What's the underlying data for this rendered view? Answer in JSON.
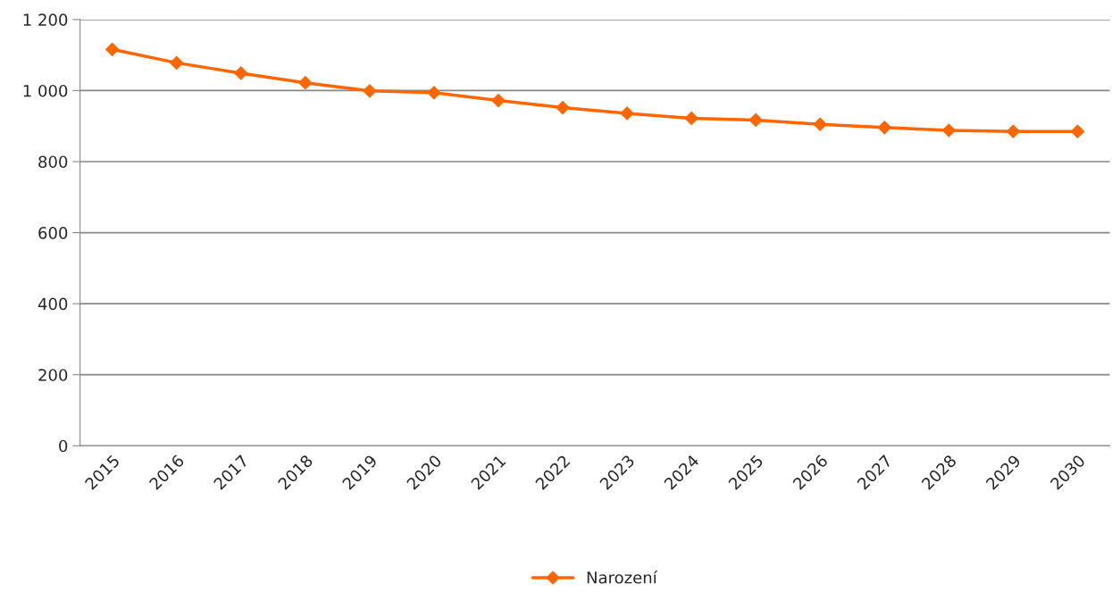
{
  "chart_data": {
    "type": "line",
    "categories": [
      "2015",
      "2016",
      "2017",
      "2018",
      "2019",
      "2020",
      "2021",
      "2022",
      "2023",
      "2024",
      "2025",
      "2026",
      "2027",
      "2028",
      "2029",
      "2030"
    ],
    "series": [
      {
        "name": "Narození",
        "color": "#ff6600",
        "values": [
          1116,
          1078,
          1049,
          1022,
          999,
          994,
          972,
          952,
          936,
          922,
          917,
          905,
          896,
          888,
          885,
          885
        ]
      }
    ],
    "ylim": [
      0,
      1200
    ],
    "yticks": [
      0,
      200,
      400,
      600,
      800,
      {
        "value": 1000,
        "label": "1 000"
      },
      {
        "value": 1200,
        "label": "1 200"
      }
    ],
    "grid": "y",
    "legend": "bottom",
    "marker": "diamond",
    "line_style": "solid"
  }
}
